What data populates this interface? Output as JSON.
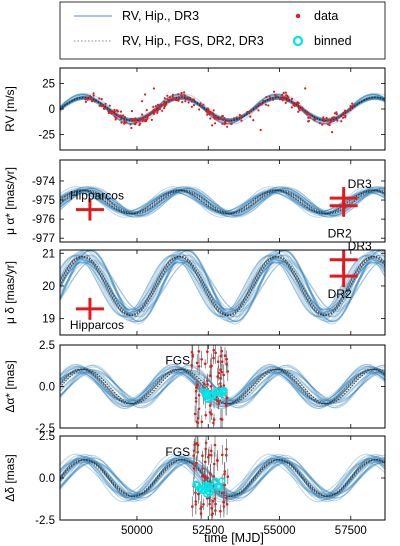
{
  "legend": {
    "entries": [
      {
        "label": "RV, Hip., DR3",
        "style": "line"
      },
      {
        "label": "RV, Hip., FGS, DR2, DR3",
        "style": "dotted"
      },
      {
        "label": "data",
        "style": "red-dot"
      },
      {
        "label": "binned",
        "style": "cyan-ring"
      }
    ]
  },
  "colors": {
    "model": "#1f77b4",
    "model_dark": "#2b2b2b",
    "data": "#e31a1c",
    "binned": "#00e5e5"
  },
  "chart_data": [
    {
      "type": "line",
      "ylabel": "RV [m/s]",
      "ylim": [
        -40,
        40
      ],
      "yticks": [
        25,
        0,
        -25
      ],
      "xlim": [
        47300,
        58700
      ],
      "model": {
        "period": 3400,
        "amplitude": 12,
        "offset": 0
      },
      "data_points": "scattered RV measurements, dense 48100-57500 MJD"
    },
    {
      "type": "line",
      "ylabel": "μ α* [mas/yr]",
      "ylim": [
        -977.2,
        -972.9
      ],
      "yticks": [
        -974,
        -975,
        -976,
        -977
      ],
      "model": {
        "period": 3400,
        "amplitude": 0.65,
        "offset": -975.1
      },
      "annotations": [
        {
          "text": "Hipparcos",
          "x": 48350,
          "y": -975.5
        },
        {
          "text": "DR3",
          "x": 57250,
          "y": -974.9
        },
        {
          "text": "DR2",
          "x": 57250,
          "y": -975.8
        }
      ],
      "markers": [
        {
          "x": 48350,
          "y": -975.5
        },
        {
          "x": 57250,
          "y": -974.9
        },
        {
          "x": 57250,
          "y": -975.3
        }
      ]
    },
    {
      "type": "line",
      "ylabel": "μ δ [mas/yr]",
      "ylim": [
        18.5,
        21.1
      ],
      "yticks": [
        21,
        20,
        19
      ],
      "model": {
        "period": 3400,
        "amplitude": 0.95,
        "offset": 20.0
      },
      "annotations": [
        {
          "text": "Hipparcos",
          "x": 48350,
          "y": 19.3
        },
        {
          "text": "DR3",
          "x": 57250,
          "y": 20.8
        },
        {
          "text": "DR2",
          "x": 57250,
          "y": 20.3
        }
      ],
      "markers": [
        {
          "x": 48350,
          "y": 19.3
        },
        {
          "x": 57250,
          "y": 20.8
        },
        {
          "x": 57250,
          "y": 20.3
        }
      ]
    },
    {
      "type": "line",
      "ylabel": "Δα* [mas]",
      "ylim": [
        -2.5,
        2.5
      ],
      "yticks": [
        2.5,
        0.0,
        -2.5
      ],
      "model": {
        "period": 3400,
        "amplitude": 1.1,
        "offset": 0
      },
      "annotations": [
        {
          "text": "FGS",
          "x": 52050,
          "y": 1.2
        }
      ],
      "fgs_range": [
        51900,
        53200
      ]
    },
    {
      "type": "line",
      "ylabel": "Δδ [mas]",
      "ylim": [
        -2.5,
        2.5
      ],
      "yticks": [
        2.5,
        0.0,
        -2.5
      ],
      "xlabel": "time [MJD]",
      "xticks": [
        "50000",
        "52500",
        "55000",
        "57500"
      ],
      "xtick_values": [
        50000,
        52500,
        55000,
        57500
      ],
      "model": {
        "period": 3400,
        "amplitude": 1.15,
        "offset": 0
      },
      "annotations": [
        {
          "text": "FGS",
          "x": 52050,
          "y": 1.2
        }
      ],
      "fgs_range": [
        51900,
        53200
      ]
    }
  ]
}
